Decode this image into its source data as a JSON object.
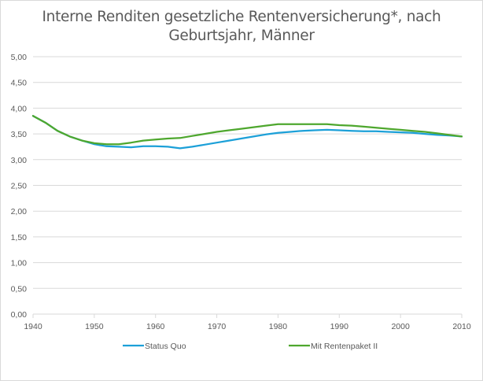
{
  "chart_data": {
    "type": "line",
    "title": "Interne Renditen gesetzliche Rentenversicherung*, nach Geburtsjahr, Männer",
    "title_lines": [
      "Interne Renditen gesetzliche Rentenversicherung*, nach",
      "Geburtsjahr, Männer"
    ],
    "xlabel": "",
    "ylabel": "",
    "xlim": [
      1940,
      2010
    ],
    "ylim": [
      0,
      5
    ],
    "x_ticks": [
      1940,
      1950,
      1960,
      1970,
      1980,
      1990,
      2000,
      2010
    ],
    "x_tick_labels": [
      "1940",
      "1950",
      "1960",
      "1970",
      "1980",
      "1990",
      "2000",
      "2010"
    ],
    "y_ticks": [
      0,
      0.5,
      1,
      1.5,
      2,
      2.5,
      3,
      3.5,
      4,
      4.5,
      5
    ],
    "y_tick_labels": [
      "0,00",
      "0,50",
      "1,00",
      "1,50",
      "2,00",
      "2,50",
      "3,00",
      "3,50",
      "4,00",
      "4,50",
      "5,00"
    ],
    "grid": "horizontal",
    "legend_position": "bottom",
    "x": [
      1940,
      1942,
      1944,
      1946,
      1948,
      1950,
      1952,
      1954,
      1956,
      1958,
      1960,
      1962,
      1964,
      1966,
      1968,
      1970,
      1972,
      1974,
      1976,
      1978,
      1980,
      1982,
      1984,
      1986,
      1988,
      1990,
      1992,
      1994,
      1996,
      1998,
      2000,
      2002,
      2004,
      2006,
      2008,
      2010
    ],
    "series": [
      {
        "name": "Status Quo",
        "color": "#1ca0d8",
        "values": [
          3.85,
          3.72,
          3.56,
          3.45,
          3.37,
          3.3,
          3.26,
          3.25,
          3.24,
          3.26,
          3.26,
          3.25,
          3.22,
          3.25,
          3.29,
          3.33,
          3.37,
          3.41,
          3.45,
          3.49,
          3.52,
          3.54,
          3.56,
          3.57,
          3.58,
          3.57,
          3.56,
          3.55,
          3.55,
          3.54,
          3.53,
          3.52,
          3.5,
          3.48,
          3.47,
          3.45
        ]
      },
      {
        "name": "Mit Rentenpaket II",
        "color": "#4ea72e",
        "values": [
          3.85,
          3.72,
          3.56,
          3.45,
          3.37,
          3.32,
          3.3,
          3.3,
          3.33,
          3.37,
          3.39,
          3.41,
          3.42,
          3.46,
          3.5,
          3.54,
          3.57,
          3.6,
          3.63,
          3.66,
          3.69,
          3.69,
          3.69,
          3.69,
          3.69,
          3.67,
          3.66,
          3.64,
          3.62,
          3.6,
          3.58,
          3.56,
          3.54,
          3.51,
          3.48,
          3.45
        ]
      }
    ]
  }
}
